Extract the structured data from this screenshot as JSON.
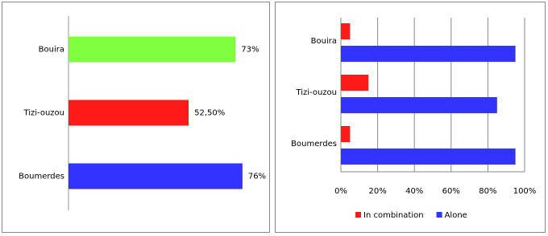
{
  "chart_data": [
    {
      "type": "bar",
      "orientation": "horizontal",
      "categories": [
        "Bouira",
        "Tizi-ouzou",
        "Boumerdes"
      ],
      "values": [
        73,
        52.5,
        76
      ],
      "value_labels": [
        "73%",
        "52,50%",
        "76%"
      ],
      "colors": [
        "#80ff40",
        "#ff1a1a",
        "#3333ff"
      ]
    },
    {
      "type": "grouped-bar",
      "orientation": "horizontal",
      "categories": [
        "Bouira",
        "Tizi-ouzou",
        "Boumerdes"
      ],
      "series": [
        {
          "name": "In combination",
          "color": "#ff1a1a",
          "values": [
            5,
            15,
            5
          ]
        },
        {
          "name": "Alone",
          "color": "#3333ff",
          "values": [
            95,
            85,
            95
          ]
        }
      ],
      "xlim": [
        0,
        100
      ],
      "xticks": [
        {
          "value": 0,
          "label": "0%"
        },
        {
          "value": 20,
          "label": "20%"
        },
        {
          "value": 40,
          "label": "40%"
        },
        {
          "value": 60,
          "label": "60%"
        },
        {
          "value": 80,
          "label": "80%"
        },
        {
          "value": 100,
          "label": "100%"
        }
      ],
      "grid": true,
      "legend": "bottom"
    }
  ]
}
